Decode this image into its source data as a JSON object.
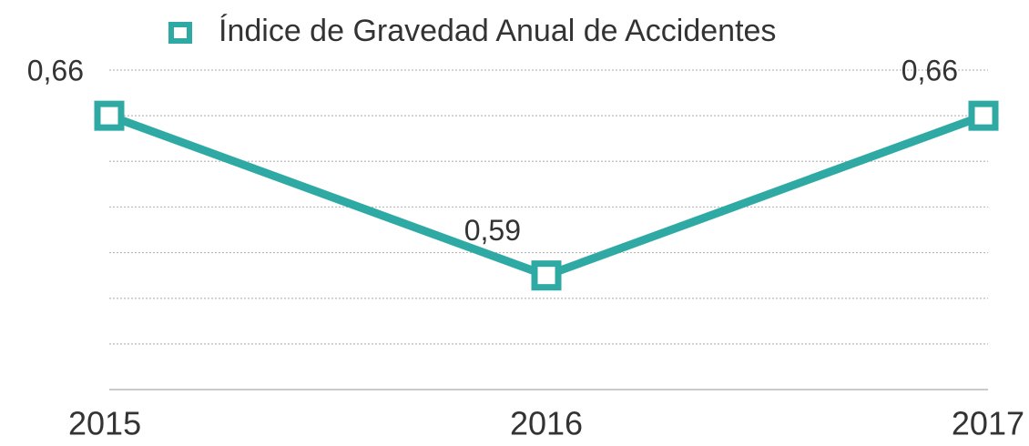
{
  "chart_data": {
    "type": "line",
    "series": [
      {
        "name": "Índice de Gravedad Anual de Accidentes",
        "color": "#2fa9a3",
        "values": [
          0.66,
          0.59,
          0.66
        ],
        "value_labels": [
          "0,66",
          "0,59",
          "0,66"
        ]
      }
    ],
    "categories": [
      "2015",
      "2016",
      "2017"
    ],
    "ylim": [
      0.54,
      0.68
    ],
    "yticks": [
      0.54,
      0.56,
      0.58,
      0.6,
      0.62,
      0.64,
      0.66,
      0.68
    ],
    "grid": true,
    "legend": "top"
  }
}
